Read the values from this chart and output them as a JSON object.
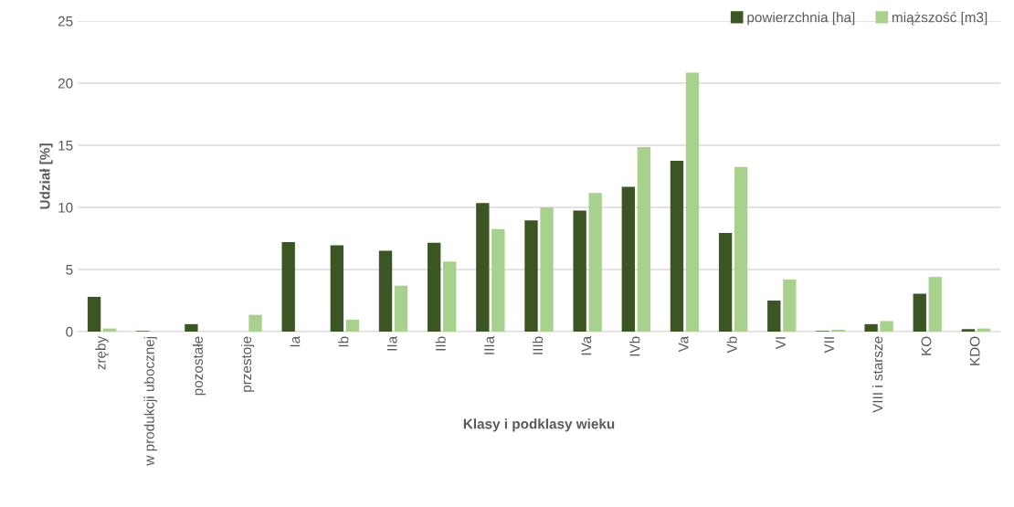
{
  "chart_data": {
    "type": "bar",
    "xlabel": "Klasy i podklasy wieku",
    "ylabel": "Udział [%]",
    "categories": [
      "zręby",
      "w produkcji ubocznej",
      "pozostałe",
      "przestoje",
      "Ia",
      "Ib",
      "IIa",
      "IIb",
      "IIIa",
      "IIIb",
      "IVa",
      "IVb",
      "Va",
      "Vb",
      "VI",
      "VII",
      "VIII i starsze",
      "KO",
      "KDO"
    ],
    "series": [
      {
        "name": "powierzchnia [ha]",
        "color": "#3b5523",
        "values": [
          2.8,
          0.05,
          0.6,
          0,
          7.2,
          6.95,
          6.5,
          7.15,
          10.35,
          8.95,
          9.75,
          11.65,
          13.75,
          7.95,
          2.5,
          0.05,
          0.6,
          3.05,
          0.2
        ]
      },
      {
        "name": "miąższość [m3]",
        "color": "#a9d18e",
        "values": [
          0.25,
          0,
          0,
          1.35,
          0,
          0.95,
          3.7,
          5.65,
          8.25,
          10,
          11.15,
          14.85,
          20.85,
          13.25,
          4.2,
          0.15,
          0.85,
          4.4,
          0.25
        ]
      }
    ],
    "ylim": [
      0,
      25
    ],
    "yticks": [
      0,
      5,
      10,
      15,
      20,
      25
    ],
    "grid": "y",
    "legend": "top right"
  }
}
